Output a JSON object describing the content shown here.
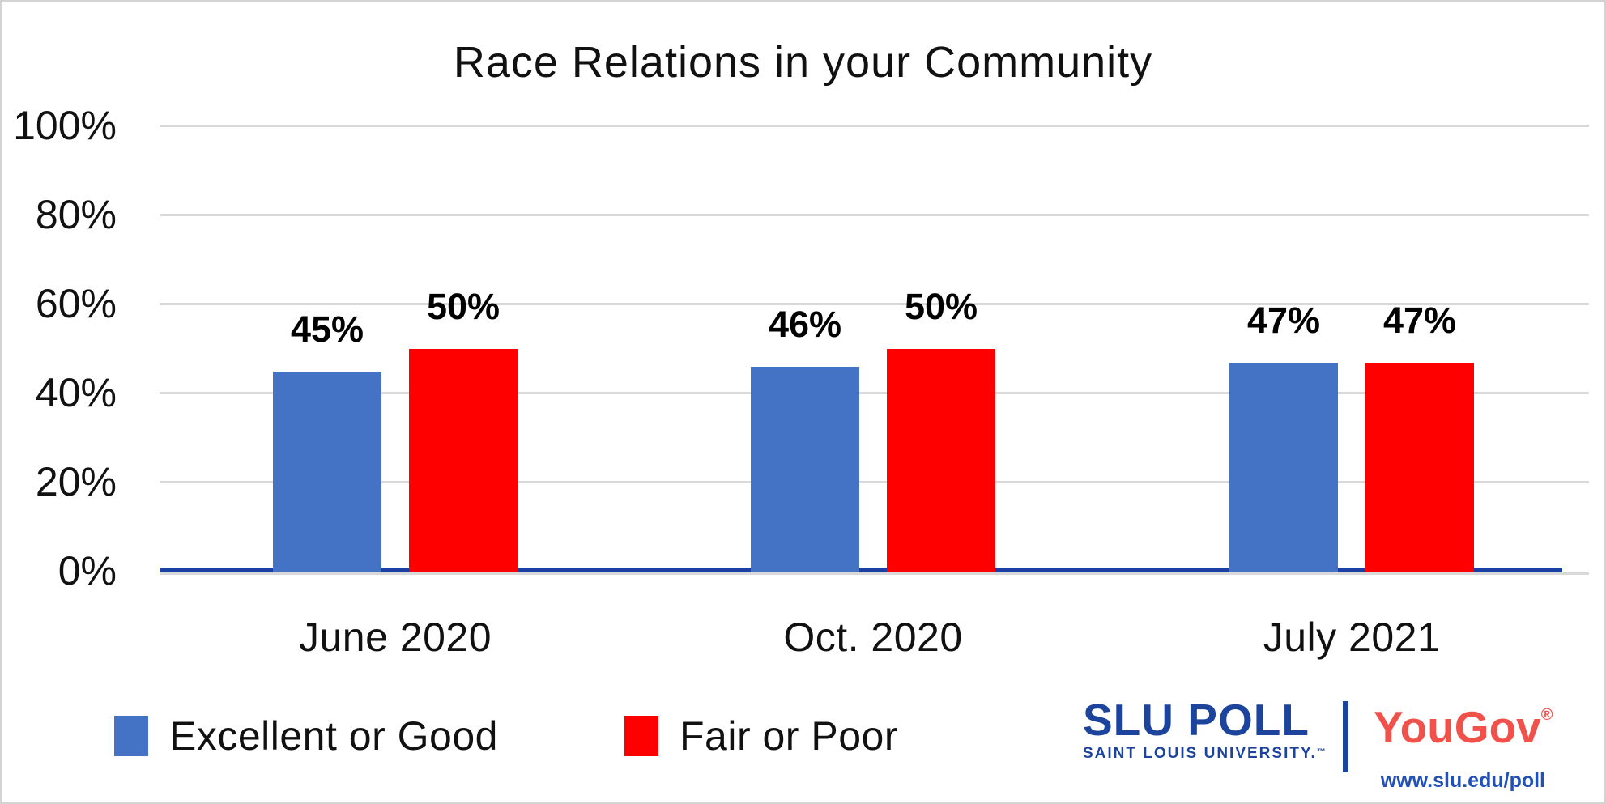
{
  "chart_data": {
    "type": "bar",
    "title": "Race Relations in your Community",
    "categories": [
      "June 2020",
      "Oct. 2020",
      "July 2021"
    ],
    "series": [
      {
        "name": "Excellent or Good",
        "color": "#4472C4",
        "values": [
          45,
          46,
          47
        ]
      },
      {
        "name": "Fair or Poor",
        "color": "#FF0000",
        "values": [
          50,
          50,
          47
        ]
      }
    ],
    "value_labels": [
      [
        "45%",
        "46%",
        "47%"
      ],
      [
        "50%",
        "50%",
        "47%"
      ]
    ],
    "y_axis": {
      "tick_labels": [
        "100%",
        "80%",
        "60%",
        "40%",
        "20%",
        "0%"
      ],
      "min": 0,
      "max": 100,
      "grid": true
    },
    "legend_position": "bottom",
    "axis_line_color": "#1B3FA5",
    "gridline_color": "#D9D9D9"
  },
  "branding": {
    "slu_wordmark": "SLU POLL",
    "slu_subtext": "SAINT LOUIS UNIVERSITY.",
    "slu_trademark": "™",
    "partner_wordmark": "YouGov",
    "partner_registered": "®",
    "website": "www.slu.edu/poll"
  },
  "colors": {
    "bar_blue": "#4472C4",
    "bar_red": "#FF0000",
    "axis_line": "#1B3FA5",
    "gridline": "#D9D9D9",
    "slu_blue": "#1C449C",
    "partner_red": "#F0524B",
    "url_blue": "#2050B8",
    "text": "#111111"
  }
}
